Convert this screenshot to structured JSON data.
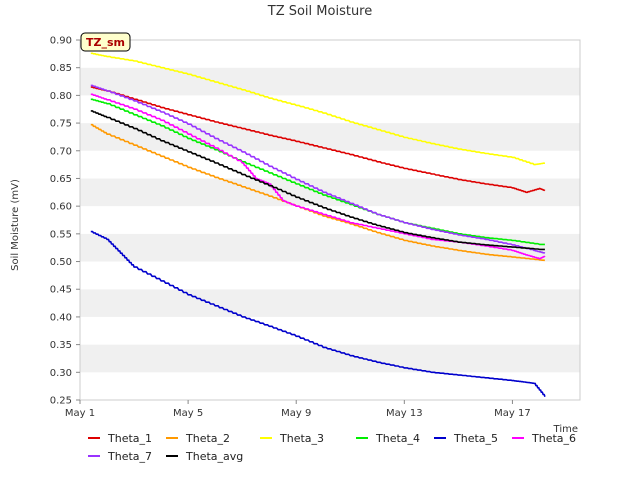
{
  "chart_data": {
    "type": "line",
    "title": "TZ Soil Moisture",
    "badge": "TZ_sm",
    "xlabel": "Time",
    "ylabel": "Soil Moisture (mV)",
    "xlim": [
      1,
      19.5
    ],
    "ylim": [
      0.25,
      0.9
    ],
    "yticks": [
      0.25,
      0.3,
      0.35,
      0.4,
      0.45,
      0.5,
      0.55,
      0.6,
      0.65,
      0.7,
      0.75,
      0.8,
      0.85,
      0.9
    ],
    "xticks": [
      {
        "value": 1,
        "label": "May 1"
      },
      {
        "value": 5,
        "label": "May 5"
      },
      {
        "value": 9,
        "label": "May 9"
      },
      {
        "value": 13,
        "label": "May 13"
      },
      {
        "value": 17,
        "label": "May 17"
      }
    ],
    "grid_bands": true,
    "legend_position": "bottom",
    "series": [
      {
        "name": "Theta_1",
        "color": "#dd0000",
        "x": [
          1.4,
          2,
          3,
          4,
          5,
          6,
          7,
          8,
          9,
          10,
          11,
          12,
          13,
          14,
          15,
          16,
          17,
          17.5,
          18,
          18.2
        ],
        "y": [
          0.815,
          0.808,
          0.793,
          0.778,
          0.765,
          0.752,
          0.74,
          0.728,
          0.717,
          0.705,
          0.693,
          0.68,
          0.668,
          0.658,
          0.648,
          0.64,
          0.633,
          0.625,
          0.632,
          0.628
        ]
      },
      {
        "name": "Theta_2",
        "color": "#ff9900",
        "x": [
          1.4,
          2,
          3,
          4,
          5,
          6,
          7,
          8,
          9,
          10,
          11,
          12,
          13,
          14,
          15,
          16,
          17,
          18,
          18.2
        ],
        "y": [
          0.747,
          0.73,
          0.71,
          0.69,
          0.67,
          0.652,
          0.635,
          0.618,
          0.6,
          0.582,
          0.568,
          0.552,
          0.538,
          0.528,
          0.52,
          0.513,
          0.508,
          0.503,
          0.502
        ]
      },
      {
        "name": "Theta_3",
        "color": "#ffff00",
        "x": [
          1.4,
          2,
          3,
          4,
          5,
          6,
          7,
          8,
          9,
          10,
          11,
          12,
          13,
          14,
          15,
          16,
          17,
          17.8,
          18.2
        ],
        "y": [
          0.876,
          0.87,
          0.862,
          0.85,
          0.838,
          0.824,
          0.81,
          0.795,
          0.782,
          0.768,
          0.752,
          0.738,
          0.724,
          0.713,
          0.703,
          0.695,
          0.688,
          0.675,
          0.678
        ]
      },
      {
        "name": "Theta_4",
        "color": "#00ee00",
        "x": [
          1.4,
          2,
          3,
          4,
          5,
          6,
          7,
          8,
          9,
          10,
          11,
          12,
          13,
          14,
          15,
          16,
          17,
          18,
          18.2
        ],
        "y": [
          0.793,
          0.785,
          0.765,
          0.745,
          0.722,
          0.702,
          0.68,
          0.66,
          0.64,
          0.62,
          0.603,
          0.585,
          0.57,
          0.56,
          0.55,
          0.543,
          0.538,
          0.531,
          0.531
        ]
      },
      {
        "name": "Theta_5",
        "color": "#0000cc",
        "x": [
          1.4,
          2,
          2.5,
          3,
          4,
          5,
          6,
          7,
          8,
          9,
          10,
          11,
          12,
          13,
          14,
          15,
          16,
          17,
          17.5,
          17.8,
          18.2
        ],
        "y": [
          0.554,
          0.54,
          0.515,
          0.49,
          0.465,
          0.44,
          0.42,
          0.4,
          0.383,
          0.365,
          0.345,
          0.33,
          0.318,
          0.308,
          0.3,
          0.295,
          0.29,
          0.285,
          0.282,
          0.28,
          0.256
        ]
      },
      {
        "name": "Theta_6",
        "color": "#ff00ff",
        "x": [
          1.4,
          2,
          3,
          4,
          5,
          6,
          7,
          7.5,
          8,
          8.5,
          9,
          10,
          11,
          12,
          13,
          14,
          15,
          16,
          17,
          17.5,
          18,
          18.2
        ],
        "y": [
          0.802,
          0.792,
          0.775,
          0.755,
          0.73,
          0.705,
          0.678,
          0.65,
          0.64,
          0.61,
          0.6,
          0.585,
          0.57,
          0.56,
          0.55,
          0.54,
          0.535,
          0.528,
          0.52,
          0.512,
          0.505,
          0.51
        ]
      },
      {
        "name": "Theta_7",
        "color": "#9933ff",
        "x": [
          1.4,
          2,
          3,
          4,
          5,
          6,
          7,
          8,
          9,
          10,
          11,
          12,
          13,
          14,
          15,
          16,
          17,
          17.8,
          18.2
        ],
        "y": [
          0.818,
          0.808,
          0.79,
          0.77,
          0.748,
          0.722,
          0.698,
          0.672,
          0.648,
          0.625,
          0.605,
          0.585,
          0.57,
          0.558,
          0.548,
          0.54,
          0.53,
          0.52,
          0.515
        ]
      },
      {
        "name": "Theta_avg",
        "color": "#000000",
        "x": [
          1.4,
          2,
          3,
          4,
          5,
          6,
          7,
          8,
          9,
          10,
          11,
          12,
          13,
          14,
          15,
          16,
          17,
          18,
          18.2
        ],
        "y": [
          0.772,
          0.76,
          0.74,
          0.718,
          0.698,
          0.678,
          0.657,
          0.637,
          0.616,
          0.597,
          0.58,
          0.565,
          0.552,
          0.543,
          0.535,
          0.53,
          0.526,
          0.522,
          0.522
        ]
      }
    ]
  }
}
